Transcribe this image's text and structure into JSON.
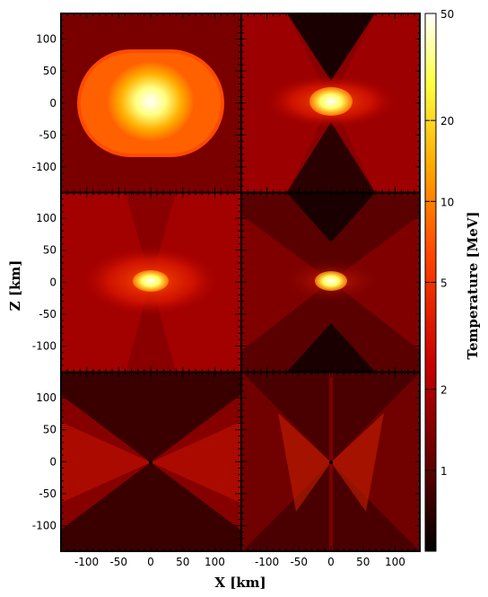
{
  "chart_data": {
    "type": "heatmap",
    "panels": [
      {
        "feature": "oblate-hot-core",
        "core_peak_temperature_MeV": 40,
        "envelope_temperature_MeV": 6,
        "background_temperature_MeV": 1.5
      },
      {
        "feature": "bipolar-shock-hot-core",
        "core_peak_temperature_MeV": 35,
        "background_temperature_MeV": 0.7
      },
      {
        "feature": "bipolar-outflow-hot-core",
        "core_peak_temperature_MeV": 30,
        "background_temperature_MeV": 1.2
      },
      {
        "feature": "cooling-compact-core",
        "core_peak_temperature_MeV": 25,
        "background_temperature_MeV": 0.7
      },
      {
        "feature": "cool-bipolar-jets",
        "core_peak_temperature_MeV": 1.5,
        "background_temperature_MeV": 0.8
      },
      {
        "feature": "cool-x-shaped-outflow",
        "core_peak_temperature_MeV": 1.5,
        "background_temperature_MeV": 0.8
      }
    ],
    "xlabel": "X [km]",
    "ylabel": "Z [km]",
    "xlim": [
      -140,
      140
    ],
    "ylim": [
      -140,
      140
    ],
    "x_ticks": [
      "-100",
      "-50",
      "0",
      "50",
      "100"
    ],
    "y_ticks": [
      "100",
      "50",
      "0",
      "-50",
      "-100"
    ],
    "colorbar": {
      "label": "Temperature [MeV]",
      "scale": "log",
      "range": [
        0.5,
        50
      ],
      "ticks": [
        {
          "value": 1,
          "label": "1"
        },
        {
          "value": 2,
          "label": "2"
        },
        {
          "value": 5,
          "label": "5"
        },
        {
          "value": 10,
          "label": "10"
        },
        {
          "value": 20,
          "label": "20"
        },
        {
          "value": 50,
          "label": "50"
        }
      ],
      "colormap": [
        "#000000",
        "#5a0000",
        "#c80000",
        "#ff4400",
        "#ffaa00",
        "#ffff40",
        "#ffffff"
      ]
    }
  }
}
